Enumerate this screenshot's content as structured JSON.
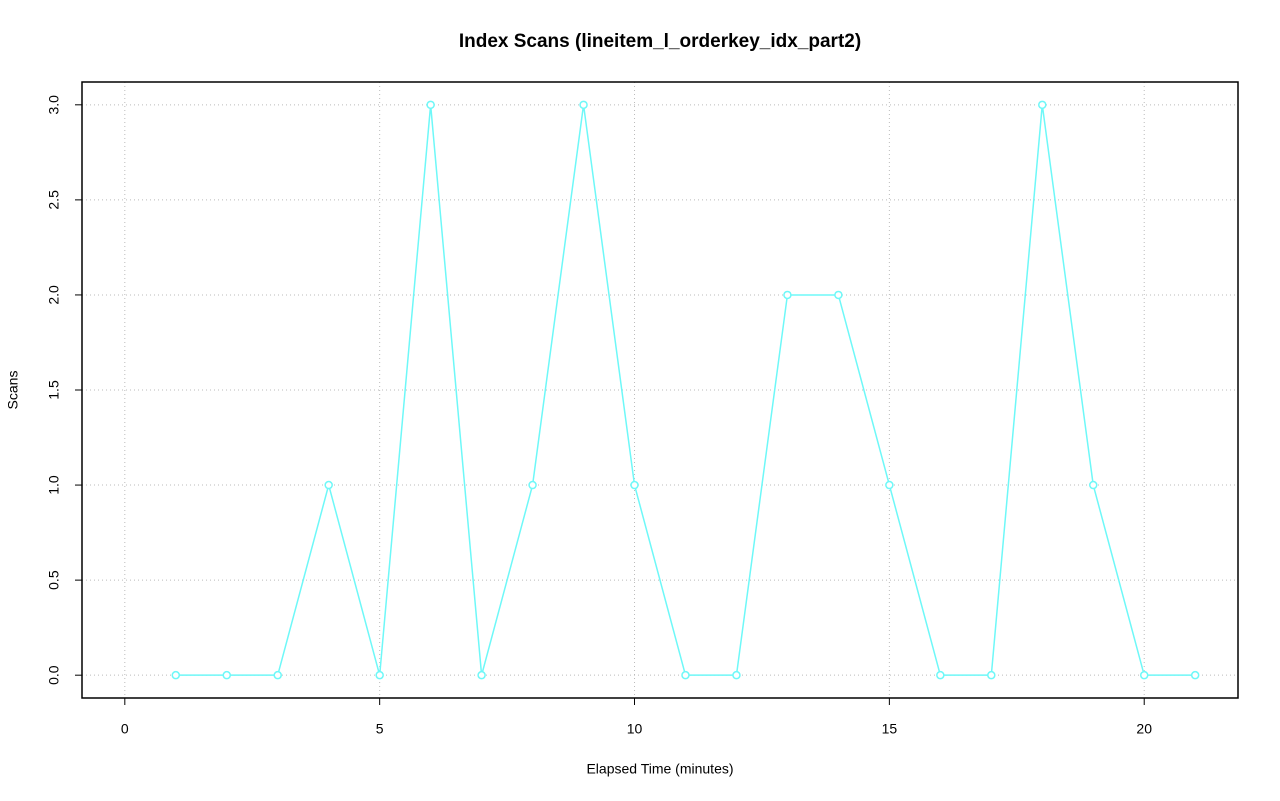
{
  "chart_data": {
    "type": "line",
    "title": "Index Scans (lineitem_l_orderkey_idx_part2)",
    "x_label": "Elapsed Time (minutes)",
    "y_label": "Scans",
    "x": [
      1,
      2,
      3,
      4,
      5,
      6,
      7,
      8,
      9,
      10,
      11,
      12,
      13,
      14,
      15,
      16,
      17,
      18,
      19,
      20,
      21
    ],
    "values": [
      0,
      0,
      0,
      1,
      0,
      3,
      0,
      1,
      3,
      1,
      0,
      0,
      2,
      2,
      1,
      0,
      0,
      3,
      1,
      0,
      0
    ],
    "color": "#6ef8f8",
    "xlim": [
      -0.84,
      21.84
    ],
    "ylim": [
      -0.12,
      3.12
    ],
    "xticks": [
      0,
      5,
      10,
      15,
      20
    ],
    "yticks": [
      {
        "value": 0,
        "label": "0.0"
      },
      {
        "value": 0.5,
        "label": "0.5"
      },
      {
        "value": 1,
        "label": "1.0"
      },
      {
        "value": 1.5,
        "label": "1.5"
      },
      {
        "value": 2,
        "label": "2.0"
      },
      {
        "value": 2.5,
        "label": "2.5"
      },
      {
        "value": 3,
        "label": "3.0"
      }
    ],
    "grid": true
  }
}
